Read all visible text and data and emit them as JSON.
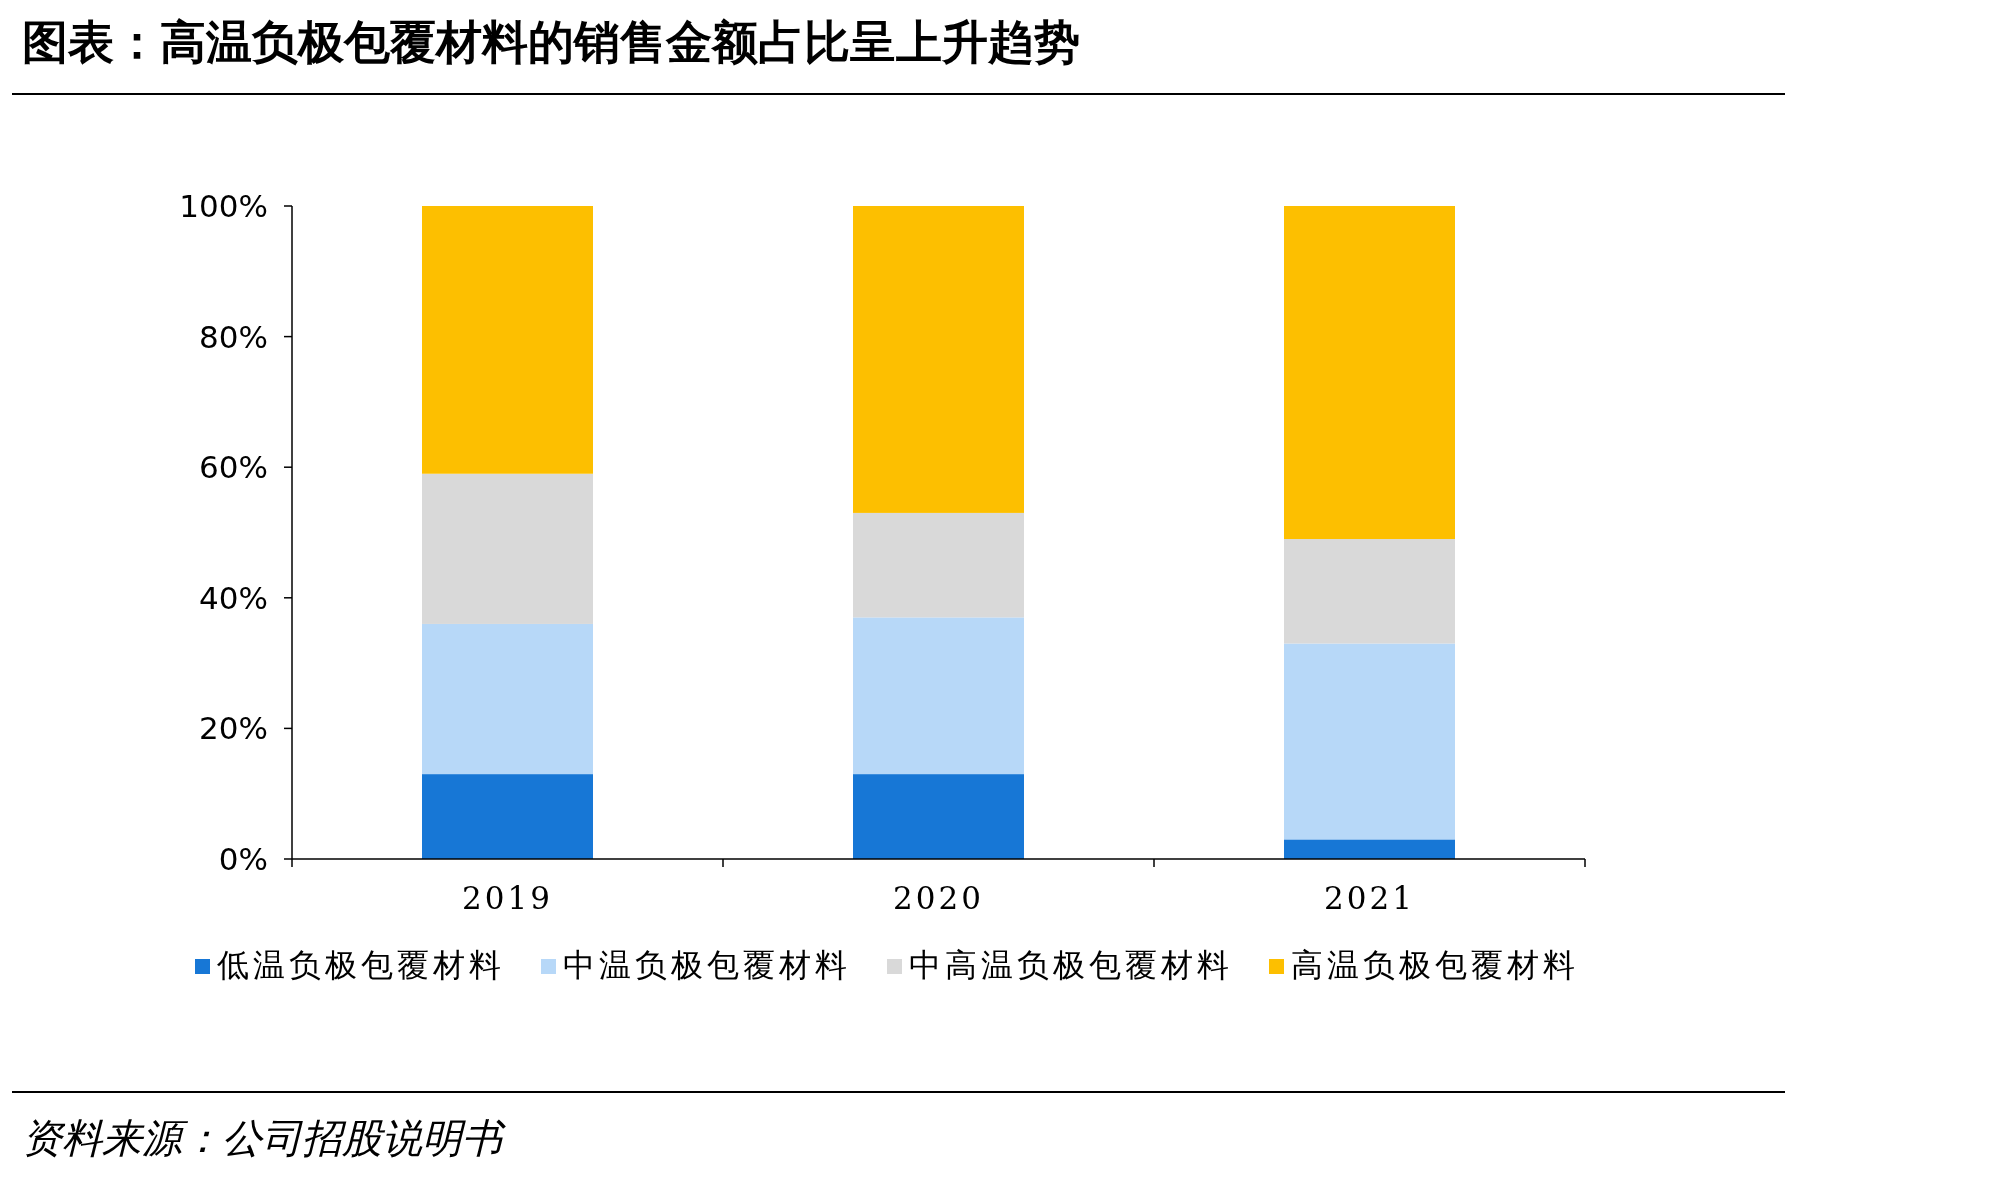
{
  "chart_data": {
    "type": "bar",
    "stacked": true,
    "title": "图表：高温负极包覆材料的销售金额占比呈上升趋势",
    "categories": [
      "2019",
      "2020",
      "2021"
    ],
    "series": [
      {
        "name": "低温负极包覆材料",
        "color": "#1777d6",
        "values": [
          13,
          13,
          3
        ]
      },
      {
        "name": "中温负极包覆材料",
        "color": "#b7d8f8",
        "values": [
          23,
          24,
          30
        ]
      },
      {
        "name": "中高温负极包覆材料",
        "color": "#d9d9d9",
        "values": [
          23,
          16,
          16
        ]
      },
      {
        "name": "高温负极包覆材料",
        "color": "#fdbf00",
        "values": [
          41,
          47,
          51
        ]
      }
    ],
    "ylim": [
      0,
      100
    ],
    "yticks": [
      {
        "value": 0,
        "label": "0%"
      },
      {
        "value": 20,
        "label": "20%"
      },
      {
        "value": 40,
        "label": "40%"
      },
      {
        "value": 60,
        "label": "60%"
      },
      {
        "value": 80,
        "label": "80%"
      },
      {
        "value": 100,
        "label": "100%"
      }
    ],
    "grid": false,
    "legend": "bottom",
    "annotations": [
      "资料来源：公司招股说明书"
    ]
  }
}
